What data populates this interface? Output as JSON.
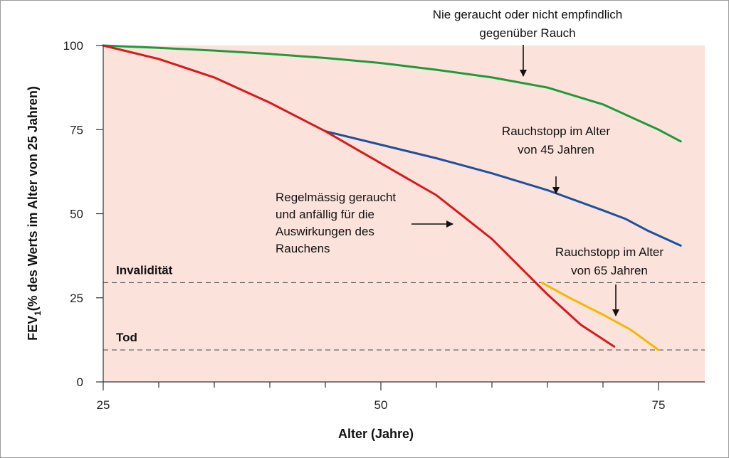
{
  "chart_data": {
    "type": "line",
    "xlabel": "Alter (Jahre)",
    "ylabel": "FEV",
    "ylabel_sub": "1",
    "ylabel_rest": "(% des Werts im Alter von 25 Jahren)",
    "xlim": [
      25,
      80
    ],
    "ylim": [
      0,
      100
    ],
    "x_ticks": [
      25,
      50,
      75
    ],
    "y_ticks": [
      0,
      25,
      50,
      75,
      100
    ],
    "grid": false,
    "background_color": "#fbe3dc",
    "reference_lines": [
      {
        "label": "Invalidität",
        "y": 29.5
      },
      {
        "label": "Tod",
        "y": 9.5
      }
    ],
    "series": [
      {
        "key": "never",
        "color": "#1f9a3a",
        "points": [
          [
            25,
            100
          ],
          [
            30,
            99.3
          ],
          [
            35,
            98.5
          ],
          [
            40,
            97.5
          ],
          [
            45,
            96.3
          ],
          [
            50,
            94.8
          ],
          [
            55,
            92.8
          ],
          [
            60,
            90.5
          ],
          [
            65,
            87.5
          ],
          [
            70,
            82.5
          ],
          [
            73,
            78
          ],
          [
            75,
            75
          ],
          [
            77,
            71.5
          ]
        ]
      },
      {
        "key": "stop45",
        "color": "#1f4fa0",
        "points": [
          [
            45,
            74.5
          ],
          [
            50,
            70.5
          ],
          [
            55,
            66.5
          ],
          [
            60,
            62
          ],
          [
            65,
            57
          ],
          [
            70,
            51
          ],
          [
            72,
            48.5
          ],
          [
            74,
            45
          ],
          [
            77,
            40.5
          ]
        ]
      },
      {
        "key": "regular",
        "color": "#d7191c",
        "points": [
          [
            25,
            100
          ],
          [
            30,
            96
          ],
          [
            35,
            90.5
          ],
          [
            40,
            83
          ],
          [
            45,
            74.5
          ],
          [
            50,
            65
          ],
          [
            55,
            55.5
          ],
          [
            60,
            42.5
          ],
          [
            65,
            26
          ],
          [
            68,
            17
          ],
          [
            71,
            10.5
          ]
        ]
      },
      {
        "key": "stop65",
        "color": "#f5b800",
        "points": [
          [
            64.5,
            29.5
          ],
          [
            67,
            25
          ],
          [
            70,
            20
          ],
          [
            72.5,
            15.5
          ],
          [
            75,
            9.5
          ]
        ]
      }
    ],
    "annotations": [
      {
        "key": "never",
        "lines": [
          "Nie geraucht oder nicht empfindlich",
          "gegenüber Rauch"
        ]
      },
      {
        "key": "stop45",
        "lines": [
          "Rauchstopp im Alter",
          "von 45 Jahren"
        ]
      },
      {
        "key": "regular",
        "lines": [
          "Regelmässig geraucht",
          "und anfällig für die",
          "Auswirkungen des",
          "Rauchens"
        ]
      },
      {
        "key": "stop65",
        "lines": [
          "Rauchstopp im Alter",
          "von 65 Jahren"
        ]
      }
    ]
  }
}
